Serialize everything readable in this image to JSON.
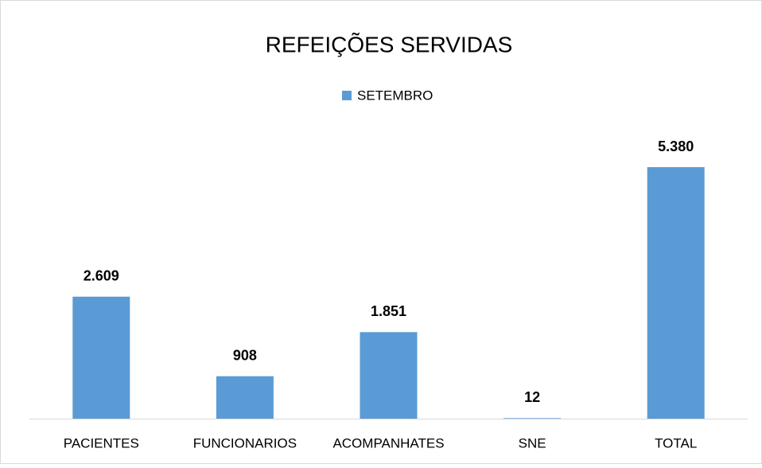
{
  "chart_data": {
    "type": "bar",
    "title": "REFEIÇÕES SERVIDAS",
    "categories": [
      "PACIENTES",
      "FUNCIONARIOS",
      "ACOMPANHATES",
      "SNE",
      "TOTAL"
    ],
    "series": [
      {
        "name": "SETEMBRO",
        "color": "#5b9bd5",
        "values": [
          2609,
          908,
          1851,
          12,
          5380
        ],
        "value_labels": [
          "2.609",
          "908",
          "1.851",
          "12",
          "5.380"
        ]
      }
    ]
  }
}
